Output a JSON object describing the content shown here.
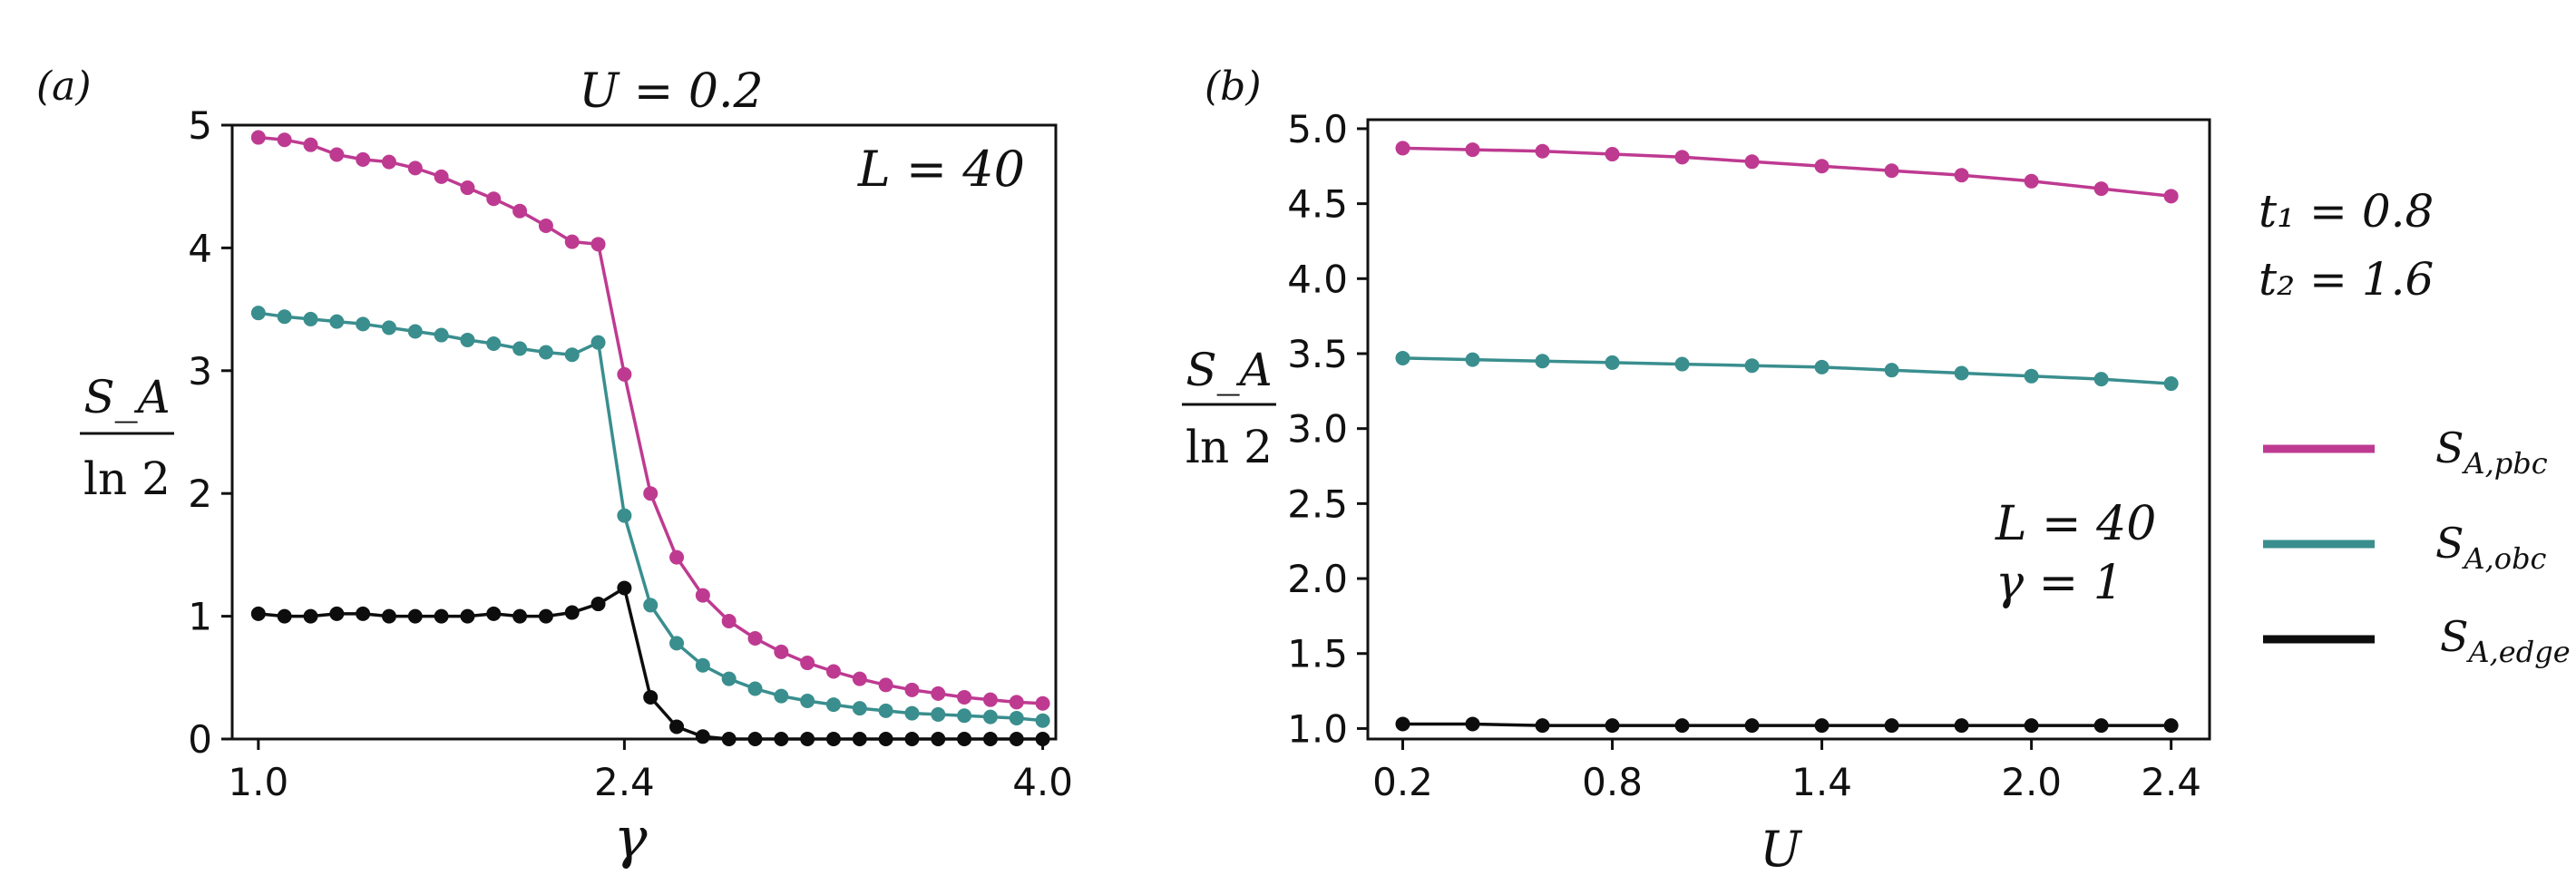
{
  "colors": {
    "pbc": "#be3a91",
    "obc": "#3a8e8e",
    "edge": "#0d0d0d",
    "axis": "#111111"
  },
  "chart_data": [
    {
      "type": "line",
      "panel_label": "(a)",
      "title": "U = 0.2",
      "annotation": "L = 40",
      "xlabel": "γ",
      "ylabel_num": "S_A",
      "ylabel_den": "ln 2",
      "xlim": [
        0.9,
        4.05
      ],
      "ylim": [
        0,
        5
      ],
      "xticks": [
        1.0,
        2.4,
        4.0
      ],
      "xtick_labels": [
        "1.0",
        "2.4",
        "4.0"
      ],
      "yticks": [
        0,
        1,
        2,
        3,
        4,
        5
      ],
      "ytick_labels": [
        "0",
        "1",
        "2",
        "3",
        "4",
        "5"
      ],
      "x": [
        1.0,
        1.1,
        1.2,
        1.3,
        1.4,
        1.5,
        1.6,
        1.7,
        1.8,
        1.9,
        2.0,
        2.1,
        2.2,
        2.3,
        2.4,
        2.5,
        2.6,
        2.7,
        2.8,
        2.9,
        3.0,
        3.1,
        3.2,
        3.3,
        3.4,
        3.5,
        3.6,
        3.7,
        3.8,
        3.9,
        4.0
      ],
      "series": [
        {
          "name": "S_A,pbc",
          "color_key": "pbc",
          "values": [
            4.9,
            4.88,
            4.84,
            4.76,
            4.72,
            4.7,
            4.65,
            4.58,
            4.49,
            4.4,
            4.3,
            4.18,
            4.05,
            4.03,
            2.97,
            2.0,
            1.48,
            1.17,
            0.96,
            0.82,
            0.71,
            0.62,
            0.55,
            0.49,
            0.44,
            0.4,
            0.37,
            0.34,
            0.32,
            0.3,
            0.29
          ]
        },
        {
          "name": "S_A,obc",
          "color_key": "obc",
          "values": [
            3.47,
            3.44,
            3.42,
            3.4,
            3.38,
            3.35,
            3.32,
            3.29,
            3.25,
            3.22,
            3.18,
            3.15,
            3.13,
            3.23,
            1.82,
            1.09,
            0.78,
            0.6,
            0.49,
            0.41,
            0.35,
            0.31,
            0.28,
            0.25,
            0.23,
            0.21,
            0.2,
            0.19,
            0.18,
            0.17,
            0.15
          ]
        },
        {
          "name": "S_A,edge",
          "color_key": "edge",
          "values": [
            1.02,
            1.0,
            1.0,
            1.02,
            1.02,
            1.0,
            1.0,
            1.0,
            1.0,
            1.02,
            1.0,
            1.0,
            1.03,
            1.1,
            1.23,
            0.34,
            0.1,
            0.02,
            0.0,
            0.0,
            0.0,
            0.0,
            0.0,
            0.0,
            0.0,
            0.0,
            0.0,
            0.0,
            0.0,
            0.0,
            0.0
          ]
        }
      ]
    },
    {
      "type": "line",
      "panel_label": "(b)",
      "annotation_lines": [
        "L = 40",
        "γ = 1"
      ],
      "xlabel": "U",
      "ylabel_num": "S_A",
      "ylabel_den": "ln 2",
      "xlim": [
        0.1,
        2.51
      ],
      "ylim": [
        0.93,
        5.06
      ],
      "xticks": [
        0.2,
        0.8,
        1.4,
        2.0,
        2.4
      ],
      "xtick_labels": [
        "0.2",
        "0.8",
        "1.4",
        "2.0",
        "2.4"
      ],
      "yticks": [
        1.0,
        1.5,
        2.0,
        2.5,
        3.0,
        3.5,
        4.0,
        4.5,
        5.0
      ],
      "ytick_labels": [
        "1.0",
        "1.5",
        "2.0",
        "2.5",
        "3.0",
        "3.5",
        "4.0",
        "4.5",
        "5.0"
      ],
      "x": [
        0.2,
        0.4,
        0.6,
        0.8,
        1.0,
        1.2,
        1.4,
        1.6,
        1.8,
        2.0,
        2.2,
        2.4
      ],
      "series": [
        {
          "name": "S_A,pbc",
          "color_key": "pbc",
          "values": [
            4.87,
            4.86,
            4.85,
            4.83,
            4.81,
            4.78,
            4.75,
            4.72,
            4.69,
            4.65,
            4.6,
            4.55
          ]
        },
        {
          "name": "S_A,obc",
          "color_key": "obc",
          "values": [
            3.47,
            3.46,
            3.45,
            3.44,
            3.43,
            3.42,
            3.41,
            3.39,
            3.37,
            3.35,
            3.33,
            3.3
          ]
        },
        {
          "name": "S_A,edge",
          "color_key": "edge",
          "values": [
            1.03,
            1.03,
            1.02,
            1.02,
            1.02,
            1.02,
            1.02,
            1.02,
            1.02,
            1.02,
            1.02,
            1.02
          ]
        }
      ]
    }
  ],
  "side_annotation": {
    "t1": "t₁ = 0.8",
    "t2": "t₂ = 1.6"
  },
  "legend": [
    {
      "main": "S",
      "sub": "A,pbc",
      "color_key": "pbc"
    },
    {
      "main": "S",
      "sub": "A,obc",
      "color_key": "obc"
    },
    {
      "main": "S",
      "sub": "A,edge",
      "color_key": "edge"
    }
  ]
}
